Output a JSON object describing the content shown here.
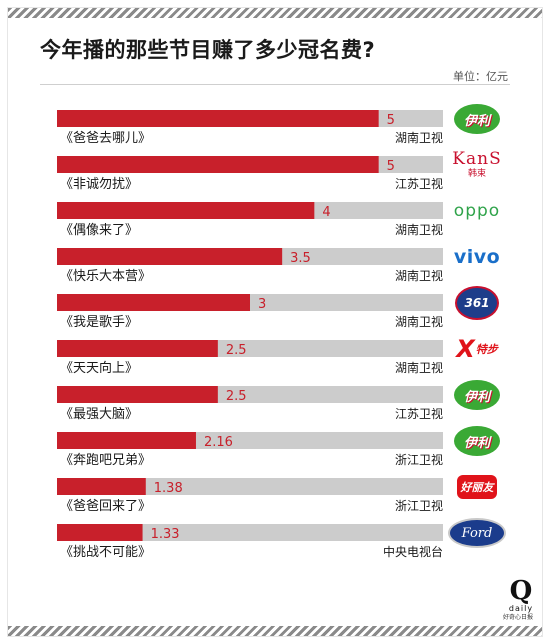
{
  "title": "今年播的那些节目赚了多少冠名费?",
  "unit": "单位：亿元",
  "chart_data": {
    "type": "bar",
    "orientation": "horizontal",
    "xlim": [
      0,
      6
    ],
    "bar_color": "#c8202b",
    "track_color": "#cccccc",
    "rows": [
      {
        "program": "《爸爸去哪儿》",
        "channel": "湖南卫视",
        "value": 5,
        "label": "5",
        "brand": "伊利",
        "brand_logo": "yili"
      },
      {
        "program": "《非诚勿扰》",
        "channel": "江苏卫视",
        "value": 5,
        "label": "5",
        "brand": "KanS",
        "brand_sub": "韩束",
        "brand_logo": "kans"
      },
      {
        "program": "《偶像来了》",
        "channel": "湖南卫视",
        "value": 4,
        "label": "4",
        "brand": "oppo",
        "brand_logo": "oppo"
      },
      {
        "program": "《快乐大本营》",
        "channel": "湖南卫视",
        "value": 3.5,
        "label": "3.5",
        "brand": "vivo",
        "brand_logo": "vivo"
      },
      {
        "program": "《我是歌手》",
        "channel": "湖南卫视",
        "value": 3,
        "label": "3",
        "brand": "361",
        "brand_logo": "361"
      },
      {
        "program": "《天天向上》",
        "channel": "湖南卫视",
        "value": 2.5,
        "label": "2.5",
        "brand": "X",
        "brand_sub": "特步",
        "brand_logo": "xtep"
      },
      {
        "program": "《最强大脑》",
        "channel": "江苏卫视",
        "value": 2.5,
        "label": "2.5",
        "brand": "伊利",
        "brand_logo": "yili"
      },
      {
        "program": "《奔跑吧兄弟》",
        "channel": "浙江卫视",
        "value": 2.16,
        "label": "2.16",
        "brand": "伊利",
        "brand_logo": "yili"
      },
      {
        "program": "《爸爸回来了》",
        "channel": "浙江卫视",
        "value": 1.38,
        "label": "1.38",
        "brand": "好丽友",
        "brand_logo": "orion"
      },
      {
        "program": "《挑战不可能》",
        "channel": "中央电视台",
        "value": 1.33,
        "label": "1.33",
        "brand": "Ford",
        "brand_logo": "ford"
      }
    ]
  },
  "footer": {
    "logo_q": "Q",
    "logo_daily": "daily",
    "logo_caption": "好奇心日报"
  }
}
